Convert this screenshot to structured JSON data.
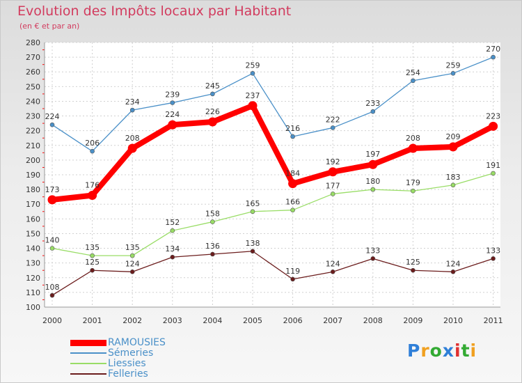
{
  "chart_data": {
    "type": "line",
    "title": "Evolution des Impôts locaux par Habitant",
    "subtitle": "(en € et par an)",
    "xlabel": "",
    "ylabel": "",
    "x": [
      "2000",
      "2001",
      "2002",
      "2003",
      "2004",
      "2005",
      "2006",
      "2007",
      "2008",
      "2009",
      "2010",
      "2011"
    ],
    "ylim": [
      100,
      280
    ],
    "yticks": [
      100,
      110,
      120,
      130,
      140,
      150,
      160,
      170,
      180,
      190,
      200,
      210,
      220,
      230,
      240,
      250,
      260,
      270,
      280
    ],
    "grid": true,
    "legend_position": "bottom-left",
    "series": [
      {
        "name": "RAMOUSIES",
        "color": "#ff0000",
        "width": "thick",
        "values": [
          173,
          176,
          208,
          224,
          226,
          237,
          184,
          192,
          197,
          208,
          209,
          223
        ]
      },
      {
        "name": "Sémeries",
        "color": "#4a90c8",
        "width": "thin",
        "values": [
          224,
          206,
          234,
          239,
          245,
          259,
          216,
          222,
          233,
          254,
          259,
          270
        ]
      },
      {
        "name": "Liessies",
        "color": "#99dd66",
        "width": "thin",
        "values": [
          140,
          135,
          135,
          152,
          158,
          165,
          166,
          177,
          180,
          179,
          183,
          191
        ]
      },
      {
        "name": "Felleries",
        "color": "#6b1c1c",
        "width": "thin",
        "values": [
          108,
          125,
          124,
          134,
          136,
          138,
          119,
          124,
          133,
          125,
          124,
          133
        ]
      }
    ]
  },
  "logo": {
    "letters": [
      "P",
      "r",
      "o",
      "x",
      "i",
      "t",
      "i"
    ],
    "colors": [
      "#2f7fd8",
      "#f0a020",
      "#33aa33",
      "#2f7fd8",
      "#e03030",
      "#33aa33",
      "#f0a020"
    ]
  }
}
